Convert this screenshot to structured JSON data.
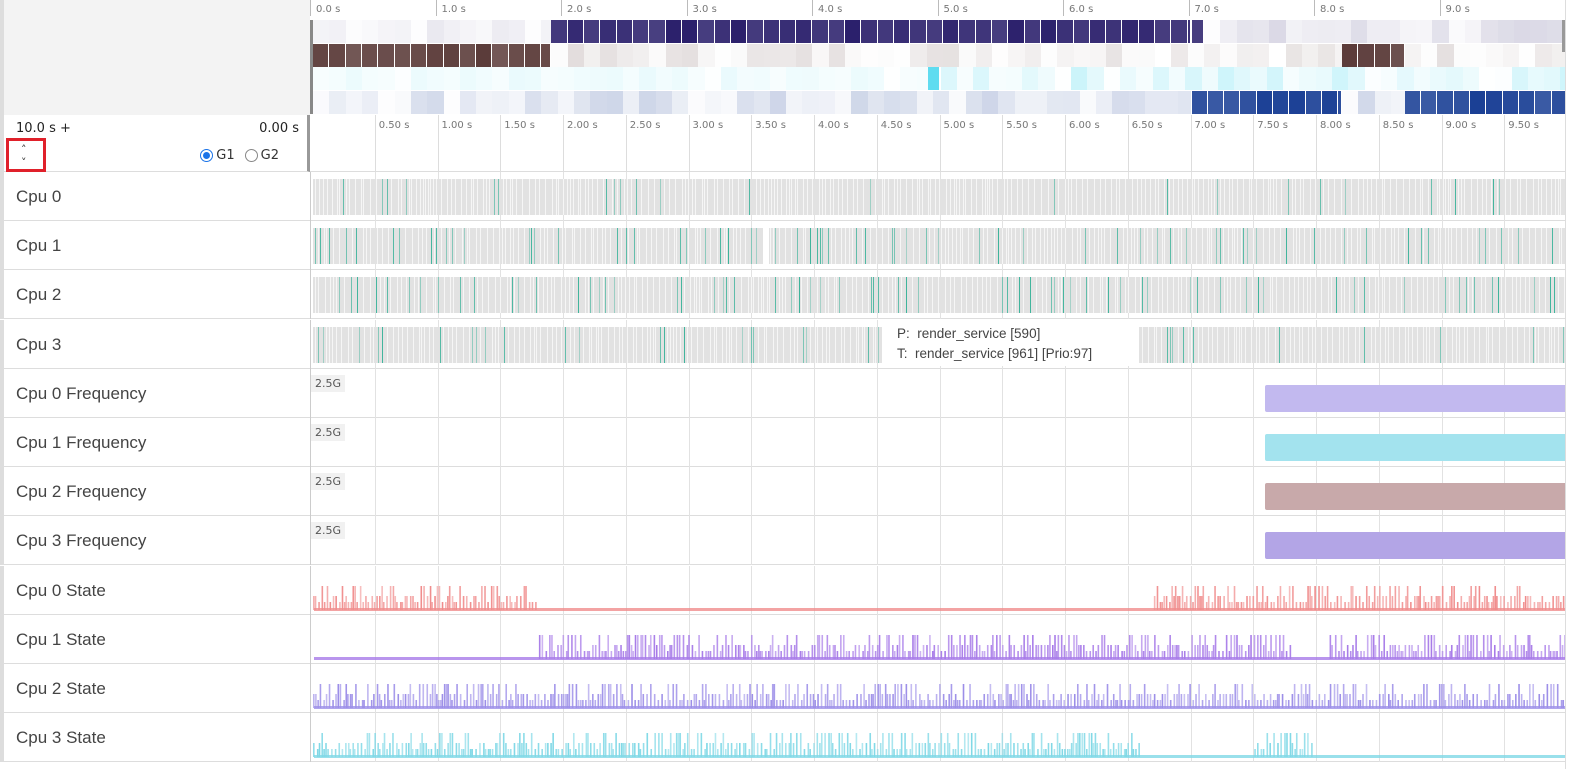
{
  "overview": {
    "ruler_ticks": [
      "0.0 s",
      "1.0 s",
      "2.0 s",
      "3.0 s",
      "4.0 s",
      "5.0 s",
      "6.0 s",
      "7.0 s",
      "8.0 s",
      "9.0 s"
    ],
    "rows": [
      {
        "name": "cpu0-heat",
        "color": "#2a1f6b",
        "segments": [
          [
            0,
            1.9,
            0.05
          ],
          [
            1.9,
            7.0,
            1
          ],
          [
            7.0,
            7.1,
            0.6
          ],
          [
            7.1,
            10,
            0.08
          ]
        ]
      },
      {
        "name": "cpu1-heat",
        "color": "#5a3a38",
        "segments": [
          [
            0,
            1.9,
            0.85
          ],
          [
            1.9,
            8.2,
            0.08
          ],
          [
            8.2,
            8.7,
            0.95
          ],
          [
            8.7,
            10,
            0.08
          ]
        ]
      },
      {
        "name": "cpu2-heat",
        "color": "#5fdcf0",
        "segments": [
          [
            0,
            4.9,
            0.06
          ],
          [
            4.9,
            5.0,
            0.9
          ],
          [
            5.0,
            10,
            0.15
          ]
        ]
      },
      {
        "name": "cpu3-heat",
        "color": "#1a3f95",
        "segments": [
          [
            0,
            7.0,
            0.1
          ],
          [
            7.0,
            8.2,
            0.95
          ],
          [
            8.2,
            8.7,
            0.1
          ],
          [
            8.7,
            10,
            0.95
          ]
        ]
      }
    ]
  },
  "range": {
    "start_label": "10.0 s +",
    "end_label": "0.00 s",
    "collapse_up": "˄",
    "collapse_down": "˅",
    "groups": [
      {
        "label": "G1",
        "selected": true
      },
      {
        "label": "G2",
        "selected": false
      }
    ],
    "ticks": [
      "0.50 s",
      "1.00 s",
      "1.50 s",
      "2.00 s",
      "2.50 s",
      "3.00 s",
      "3.50 s",
      "4.00 s",
      "4.50 s",
      "5.00 s",
      "5.50 s",
      "6.00 s",
      "6.50 s",
      "7.00 s",
      "7.50 s",
      "8.00 s",
      "8.50 s",
      "9.00 s",
      "9.50 s"
    ]
  },
  "tracks": [
    {
      "label": "Cpu 0",
      "kind": "cpu",
      "busy_range": [
        0,
        10
      ],
      "gap": null,
      "density": 0.08
    },
    {
      "label": "Cpu 1",
      "kind": "cpu",
      "busy_range": [
        0,
        10
      ],
      "gap": [
        3.6,
        3.65
      ],
      "density": 0.18
    },
    {
      "label": "Cpu 2",
      "kind": "cpu",
      "busy_range": [
        0,
        10
      ],
      "gap": null,
      "density": 0.22
    },
    {
      "label": "Cpu 3",
      "kind": "cpu",
      "busy_range": [
        0,
        10
      ],
      "gap": [
        4.55,
        6.6
      ],
      "density": 0.15
    },
    {
      "label": "Cpu 0 Frequency",
      "kind": "freq",
      "max_label": "2.5G",
      "start": 7.6,
      "color": "#c2b9ef"
    },
    {
      "label": "Cpu 1 Frequency",
      "kind": "freq",
      "max_label": "2.5G",
      "start": 7.6,
      "color": "#a3e3ee"
    },
    {
      "label": "Cpu 2 Frequency",
      "kind": "freq",
      "max_label": "2.5G",
      "start": 7.6,
      "color": "#c8a9aa"
    },
    {
      "label": "Cpu 3 Frequency",
      "kind": "freq",
      "max_label": "2.5G",
      "start": 7.6,
      "color": "#b3a5e6"
    },
    {
      "label": "Cpu 0 State",
      "kind": "state",
      "color": "#f08c8c",
      "active": [
        [
          0,
          1.8
        ],
        [
          6.7,
          10
        ]
      ]
    },
    {
      "label": "Cpu 1 State",
      "kind": "state",
      "color": "#a77ae8",
      "active": [
        [
          1.8,
          7.8
        ],
        [
          8.1,
          10
        ]
      ]
    },
    {
      "label": "Cpu 2 State",
      "kind": "state",
      "color": "#9c8ee8",
      "active": [
        [
          0,
          10
        ]
      ]
    },
    {
      "label": "Cpu 3 State",
      "kind": "state",
      "color": "#7fd8e6",
      "active": [
        [
          0,
          6.6
        ],
        [
          7.5,
          8.0
        ]
      ]
    }
  ],
  "tooltip": {
    "process_line": "P:  render_service [590]",
    "thread_line": "T:  render_service [961] [Prio:97]"
  },
  "colors": {
    "slice_accent": "#3cb39a",
    "slice_bg": "#e2e2e2"
  }
}
